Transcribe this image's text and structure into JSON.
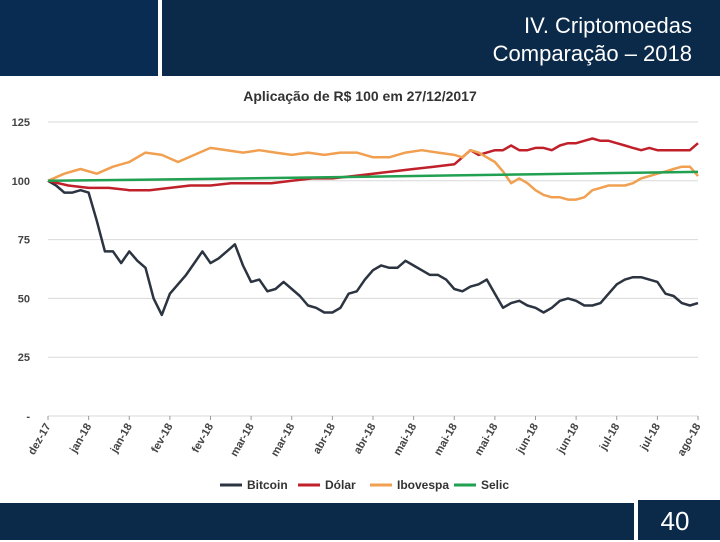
{
  "header": {
    "title_line1": "IV. Criptomoedas",
    "title_line2": "Comparação – 2018"
  },
  "footer": {
    "page_number": "40"
  },
  "colors": {
    "header_bg": "#0b2a4a",
    "Bitcoin": "#2b3440",
    "Dólar": "#c0202a",
    "Ibovespa": "#f0a050",
    "Selic": "#20a050"
  },
  "chart_data": {
    "type": "line",
    "title": "Aplicação de R$ 100 em 27/12/2017",
    "ylim": [
      0,
      125
    ],
    "yticks": [
      0,
      25,
      50,
      75,
      100,
      125
    ],
    "ytick_labels": [
      "-",
      "25",
      "50",
      "75",
      "100",
      "125"
    ],
    "grid": "horizontal",
    "legend_position": "bottom",
    "x_tick_labels": [
      "dez-17",
      "jan-18",
      "jan-18",
      "fev-18",
      "fev-18",
      "mar-18",
      "mar-18",
      "abr-18",
      "abr-18",
      "mai-18",
      "mai-18",
      "mai-18",
      "jun-18",
      "jun-18",
      "jul-18",
      "jul-18",
      "ago-18"
    ],
    "x_tick_positions": [
      0,
      10,
      20,
      30,
      40,
      50,
      60,
      70,
      80,
      90,
      100,
      110,
      120,
      130,
      140,
      150,
      160
    ],
    "x_range": [
      0,
      160
    ],
    "series": [
      {
        "name": "Bitcoin",
        "x": [
          0,
          2,
          4,
          6,
          8,
          10,
          12,
          14,
          16,
          18,
          20,
          22,
          24,
          26,
          28,
          30,
          32,
          34,
          36,
          38,
          40,
          42,
          44,
          46,
          48,
          50,
          52,
          54,
          56,
          58,
          60,
          62,
          64,
          66,
          68,
          70,
          72,
          74,
          76,
          78,
          80,
          82,
          84,
          86,
          88,
          90,
          92,
          94,
          96,
          98,
          100,
          102,
          104,
          106,
          108,
          110,
          112,
          114,
          116,
          118,
          120,
          122,
          124,
          126,
          128,
          130,
          132,
          134,
          136,
          138,
          140,
          142,
          144,
          146,
          148,
          150,
          152,
          154,
          156,
          158,
          160
        ],
        "values": [
          100,
          98,
          95,
          95,
          96,
          95,
          83,
          70,
          70,
          65,
          70,
          66,
          63,
          50,
          43,
          52,
          56,
          60,
          65,
          70,
          65,
          67,
          70,
          73,
          64,
          57,
          58,
          53,
          54,
          57,
          54,
          51,
          47,
          46,
          44,
          44,
          46,
          52,
          53,
          58,
          62,
          64,
          63,
          63,
          66,
          64,
          62,
          60,
          60,
          58,
          54,
          53,
          55,
          56,
          58,
          52,
          46,
          48,
          49,
          47,
          46,
          44,
          46,
          49,
          50,
          49,
          47,
          47,
          48,
          52,
          56,
          58,
          59,
          59,
          58,
          57,
          52,
          51,
          48,
          47,
          48
        ]
      },
      {
        "name": "Dólar",
        "x": [
          0,
          5,
          10,
          15,
          20,
          25,
          30,
          35,
          40,
          45,
          50,
          55,
          60,
          65,
          70,
          75,
          80,
          85,
          90,
          95,
          100,
          102,
          104,
          106,
          108,
          110,
          112,
          114,
          116,
          118,
          120,
          122,
          124,
          126,
          128,
          130,
          132,
          134,
          136,
          138,
          140,
          142,
          144,
          146,
          148,
          150,
          152,
          154,
          156,
          158,
          160
        ],
        "values": [
          100,
          98,
          97,
          97,
          96,
          96,
          97,
          98,
          98,
          99,
          99,
          99,
          100,
          101,
          101,
          102,
          103,
          104,
          105,
          106,
          107,
          110,
          113,
          111,
          112,
          113,
          113,
          115,
          113,
          113,
          114,
          114,
          113,
          115,
          116,
          116,
          117,
          118,
          117,
          117,
          116,
          115,
          114,
          113,
          114,
          113,
          113,
          113,
          113,
          113,
          116
        ]
      },
      {
        "name": "Ibovespa",
        "x": [
          0,
          4,
          8,
          12,
          16,
          20,
          24,
          28,
          32,
          36,
          40,
          44,
          48,
          52,
          56,
          60,
          64,
          68,
          72,
          76,
          80,
          84,
          88,
          92,
          96,
          100,
          102,
          104,
          106,
          108,
          110,
          112,
          114,
          116,
          118,
          120,
          122,
          124,
          126,
          128,
          130,
          132,
          134,
          136,
          138,
          140,
          142,
          144,
          146,
          148,
          150,
          152,
          154,
          156,
          158,
          160
        ],
        "values": [
          100,
          103,
          105,
          103,
          106,
          108,
          112,
          111,
          108,
          111,
          114,
          113,
          112,
          113,
          112,
          111,
          112,
          111,
          112,
          112,
          110,
          110,
          112,
          113,
          112,
          111,
          110,
          113,
          112,
          110,
          108,
          104,
          99,
          101,
          99,
          96,
          94,
          93,
          93,
          92,
          92,
          93,
          96,
          97,
          98,
          98,
          98,
          99,
          101,
          102,
          103,
          104,
          105,
          106,
          106,
          102
        ]
      },
      {
        "name": "Selic",
        "x": [
          0,
          20,
          40,
          60,
          80,
          100,
          120,
          140,
          160
        ],
        "values": [
          100,
          100.4,
          100.8,
          101.3,
          101.8,
          102.3,
          102.8,
          103.3,
          103.8
        ]
      }
    ]
  }
}
